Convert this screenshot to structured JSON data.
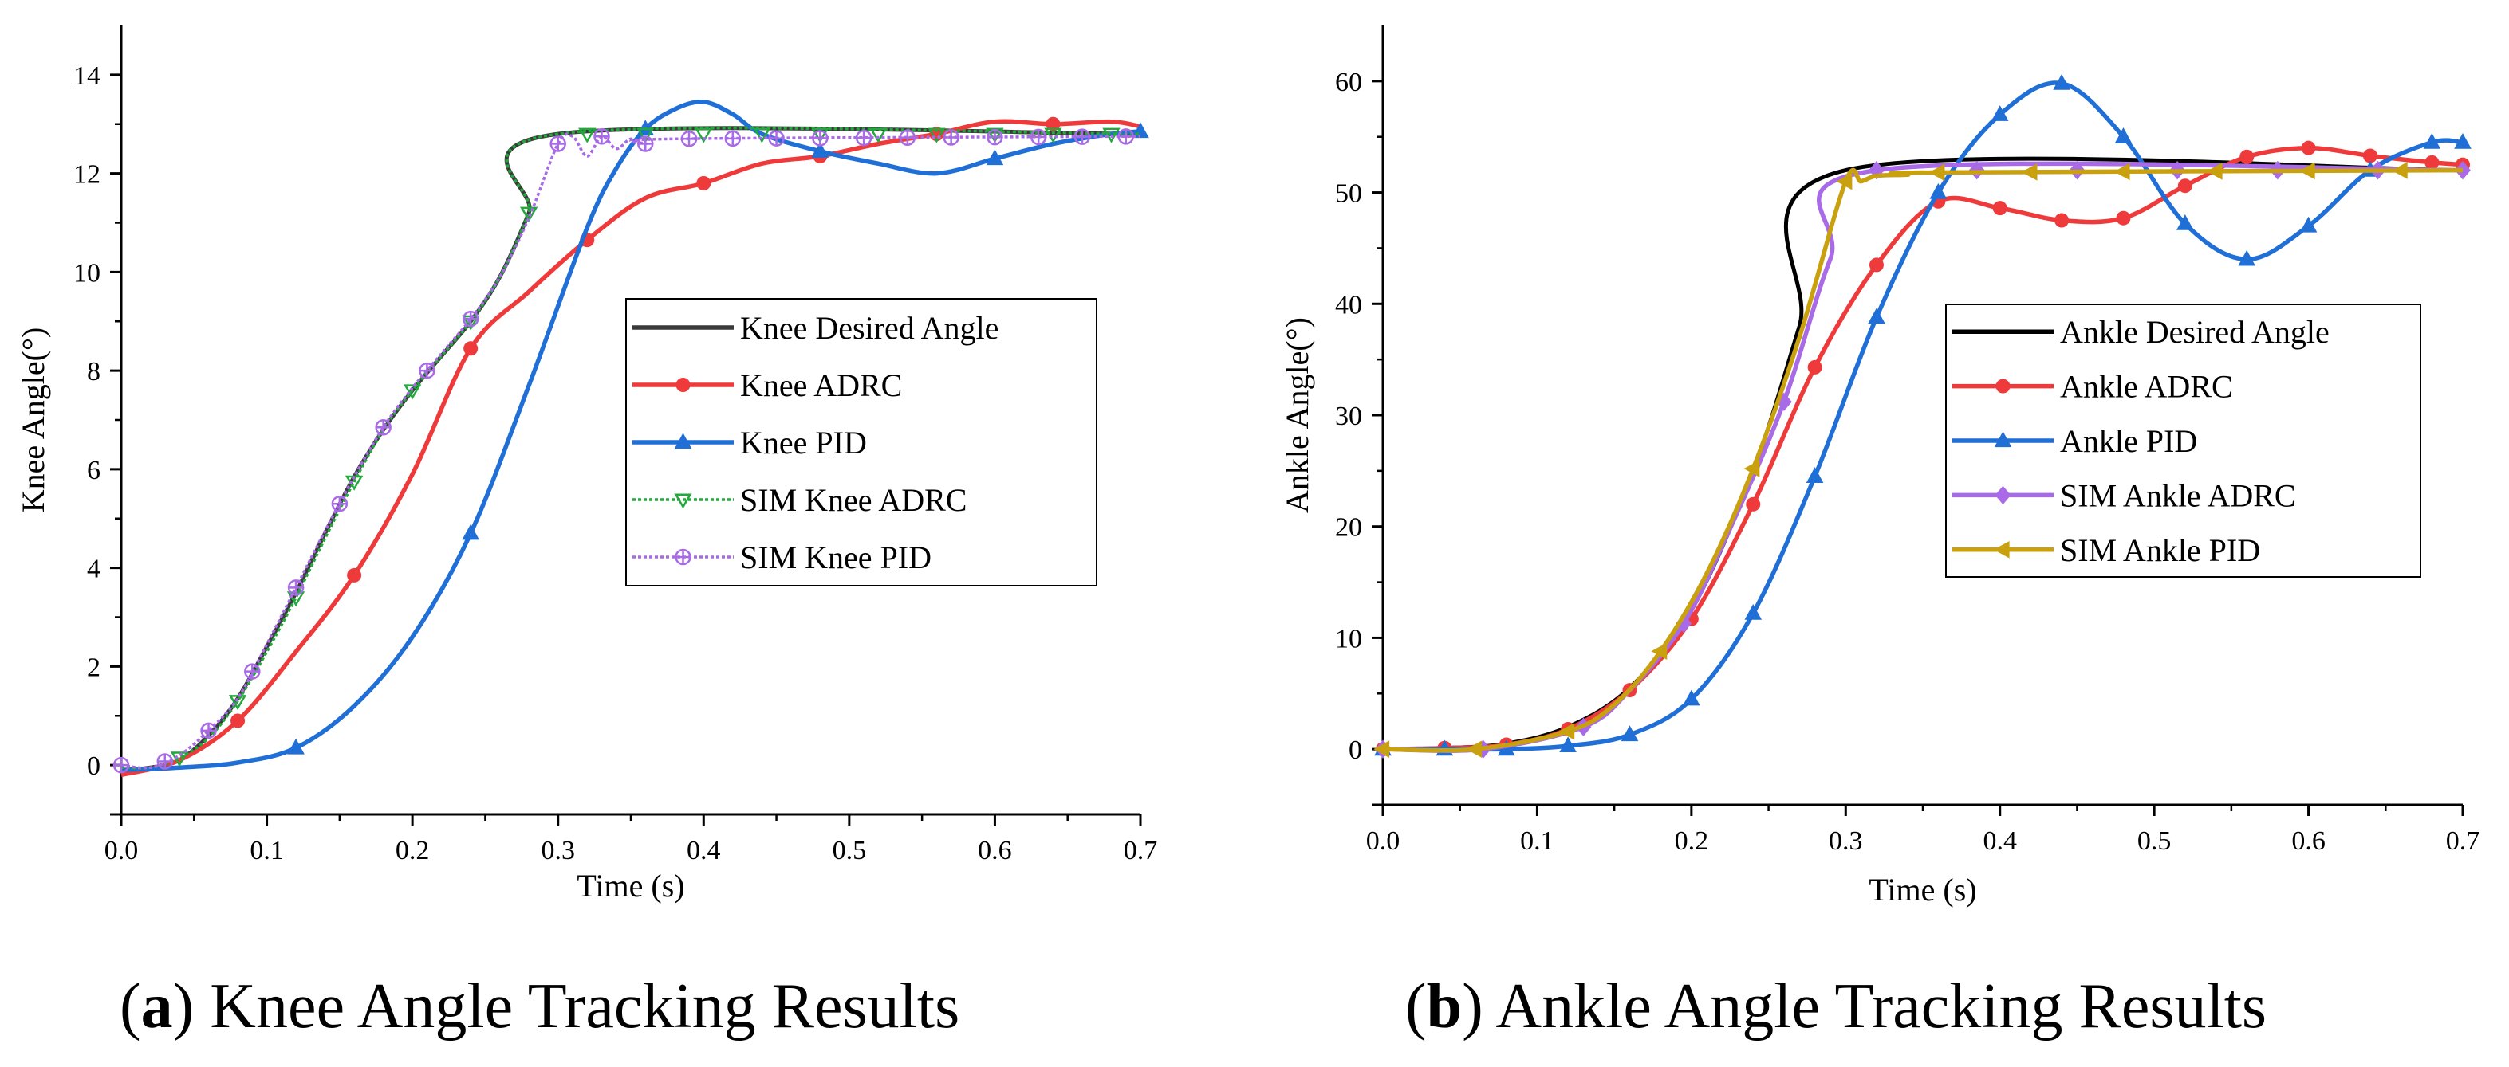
{
  "colors": {
    "desired": "#3a3a3a",
    "desired_ankle": "#000000",
    "adrc": "#ee3a3a",
    "pid": "#1f6fd6",
    "sim_knee_adrc": "#22a93c",
    "sim_knee_pid": "#a86ae6",
    "sim_ankle_adrc": "#a86ae6",
    "sim_ankle_pid": "#c9a00e"
  },
  "captions": {
    "a_letter": "a",
    "a_text": " Knee Angle Tracking Results",
    "b_letter": "b",
    "b_text": " Ankle Angle Tracking Results"
  },
  "chart_data": [
    {
      "type": "line",
      "title": "",
      "xlabel": "Time (s)",
      "ylabel": "Knee Angle(°)",
      "xlim": [
        0,
        0.7
      ],
      "ylim": [
        -1,
        15
      ],
      "x_ticks": [
        0,
        0.1,
        0.2,
        0.3,
        0.4,
        0.5,
        0.6,
        0.7
      ],
      "x_tick_labels": [
        "0.0",
        "0.1",
        "0.2",
        "0.3",
        "0.4",
        "0.5",
        "0.6",
        "0.7"
      ],
      "y_ticks": [
        0,
        2,
        4,
        6,
        8,
        10,
        12,
        14
      ],
      "y_tick_labels": [
        "0",
        "2",
        "4",
        "6",
        "8",
        "10",
        "12",
        "14"
      ],
      "grid": false,
      "legend_position": "center-right",
      "series": [
        {
          "name": "Knee Desired Angle",
          "color_key": "desired",
          "marker": "none",
          "x": [
            0,
            0.02,
            0.04,
            0.06,
            0.08,
            0.1,
            0.12,
            0.14,
            0.16,
            0.18,
            0.2,
            0.22,
            0.24,
            0.26,
            0.28,
            0.3,
            0.7
          ],
          "y": [
            -0.1,
            -0.05,
            0.1,
            0.6,
            1.35,
            2.4,
            3.5,
            4.7,
            5.85,
            6.8,
            7.6,
            8.3,
            9.0,
            9.9,
            11.2,
            12.8,
            12.8
          ]
        },
        {
          "name": "Knee ADRC",
          "color_key": "adrc",
          "marker": "circle",
          "x": [
            0,
            0.04,
            0.08,
            0.12,
            0.16,
            0.2,
            0.24,
            0.28,
            0.32,
            0.36,
            0.4,
            0.44,
            0.48,
            0.52,
            0.56,
            0.6,
            0.64,
            0.68,
            0.7
          ],
          "y": [
            -0.2,
            0.1,
            0.9,
            2.3,
            3.85,
            5.9,
            8.45,
            9.6,
            10.65,
            11.5,
            11.8,
            12.2,
            12.35,
            12.6,
            12.8,
            13.05,
            13.0,
            13.05,
            12.95
          ],
          "marker_x": [
            0.08,
            0.16,
            0.24,
            0.32,
            0.4,
            0.48,
            0.56,
            0.64
          ]
        },
        {
          "name": "Knee PID",
          "color_key": "pid",
          "marker": "triangle",
          "x": [
            0,
            0.04,
            0.08,
            0.12,
            0.16,
            0.2,
            0.24,
            0.28,
            0.32,
            0.34,
            0.36,
            0.38,
            0.4,
            0.42,
            0.44,
            0.48,
            0.52,
            0.56,
            0.6,
            0.64,
            0.68,
            0.7
          ],
          "y": [
            -0.1,
            -0.05,
            0.05,
            0.35,
            1.2,
            2.6,
            4.7,
            7.7,
            10.9,
            12.1,
            12.9,
            13.3,
            13.45,
            13.2,
            12.8,
            12.45,
            12.2,
            12.0,
            12.3,
            12.6,
            12.8,
            12.85
          ],
          "marker_x": [
            0.12,
            0.24,
            0.36,
            0.48,
            0.6,
            0.7
          ]
        },
        {
          "name": "SIM Knee ADRC",
          "color_key": "sim_knee_adrc",
          "marker": "triangle-down",
          "x": [
            0,
            0.02,
            0.04,
            0.06,
            0.08,
            0.1,
            0.12,
            0.14,
            0.16,
            0.18,
            0.2,
            0.22,
            0.24,
            0.26,
            0.28,
            0.3,
            0.7
          ],
          "y": [
            -0.05,
            -0.05,
            0.15,
            0.55,
            1.3,
            2.3,
            3.4,
            4.6,
            5.75,
            6.8,
            7.6,
            8.3,
            9.0,
            9.9,
            11.2,
            12.8,
            12.8
          ],
          "marker_x": [
            0.04,
            0.08,
            0.12,
            0.16,
            0.2,
            0.24,
            0.28,
            0.32,
            0.36,
            0.4,
            0.44,
            0.48,
            0.52,
            0.56,
            0.6,
            0.64,
            0.68
          ]
        },
        {
          "name": "SIM Knee PID",
          "color_key": "sim_knee_pid",
          "marker": "crossed-circle",
          "x": [
            0,
            0.02,
            0.04,
            0.06,
            0.08,
            0.1,
            0.12,
            0.14,
            0.16,
            0.18,
            0.2,
            0.22,
            0.24,
            0.26,
            0.28,
            0.3,
            0.31,
            0.32,
            0.33,
            0.34,
            0.35,
            0.36,
            0.38,
            0.7
          ],
          "y": [
            0.0,
            -0.05,
            0.2,
            0.7,
            1.35,
            2.45,
            3.6,
            4.75,
            5.85,
            6.85,
            7.65,
            8.35,
            9.05,
            9.9,
            11.1,
            12.6,
            12.75,
            12.35,
            12.75,
            12.5,
            12.7,
            12.6,
            12.7,
            12.75
          ],
          "marker_x": [
            0,
            0.03,
            0.06,
            0.09,
            0.12,
            0.15,
            0.18,
            0.21,
            0.24,
            0.3,
            0.33,
            0.36,
            0.39,
            0.42,
            0.45,
            0.48,
            0.51,
            0.54,
            0.57,
            0.6,
            0.63,
            0.66,
            0.69
          ]
        }
      ]
    },
    {
      "type": "line",
      "title": "",
      "xlabel": "Time (s)",
      "ylabel": "Ankle Angle(°)",
      "xlim": [
        0,
        0.7
      ],
      "ylim": [
        -5,
        65
      ],
      "x_ticks": [
        0,
        0.1,
        0.2,
        0.3,
        0.4,
        0.5,
        0.6,
        0.7
      ],
      "x_tick_labels": [
        "0.0",
        "0.1",
        "0.2",
        "0.3",
        "0.4",
        "0.5",
        "0.6",
        "0.7"
      ],
      "y_ticks": [
        0,
        10,
        20,
        30,
        40,
        50,
        60
      ],
      "y_tick_labels": [
        "0",
        "10",
        "20",
        "30",
        "40",
        "50",
        "60"
      ],
      "grid": false,
      "legend_position": "center-right",
      "series": [
        {
          "name": "Ankle Desired Angle",
          "color_key": "desired_ankle",
          "marker": "none",
          "x": [
            0,
            0.04,
            0.08,
            0.12,
            0.16,
            0.2,
            0.24,
            0.27,
            0.3,
            0.7
          ],
          "y": [
            0,
            0.1,
            0.5,
            2.0,
            5.5,
            12.5,
            25.0,
            38.0,
            52.0,
            52.0
          ]
        },
        {
          "name": "Ankle ADRC",
          "color_key": "adrc",
          "marker": "circle",
          "x": [
            0,
            0.04,
            0.08,
            0.12,
            0.16,
            0.2,
            0.24,
            0.28,
            0.32,
            0.36,
            0.4,
            0.44,
            0.48,
            0.52,
            0.56,
            0.6,
            0.64,
            0.68,
            0.7
          ],
          "y": [
            0,
            0.1,
            0.4,
            1.8,
            5.3,
            11.7,
            22.0,
            34.3,
            43.5,
            49.2,
            48.6,
            47.5,
            47.7,
            50.6,
            53.2,
            54.0,
            53.3,
            52.7,
            52.5
          ],
          "marker_x": [
            0,
            0.04,
            0.08,
            0.12,
            0.16,
            0.2,
            0.24,
            0.28,
            0.32,
            0.36,
            0.4,
            0.44,
            0.48,
            0.52,
            0.56,
            0.6,
            0.64,
            0.68,
            0.7
          ]
        },
        {
          "name": "Ankle PID",
          "color_key": "pid",
          "marker": "triangle",
          "x": [
            0,
            0.04,
            0.08,
            0.12,
            0.16,
            0.2,
            0.24,
            0.28,
            0.32,
            0.36,
            0.4,
            0.44,
            0.48,
            0.52,
            0.56,
            0.6,
            0.64,
            0.68,
            0.7
          ],
          "y": [
            0,
            0,
            0,
            0.3,
            1.3,
            4.5,
            12.2,
            24.5,
            38.8,
            50.0,
            57.0,
            59.8,
            55.0,
            47.2,
            44.0,
            47.0,
            52.0,
            54.5,
            54.5
          ],
          "marker_x": [
            0,
            0.04,
            0.08,
            0.12,
            0.16,
            0.2,
            0.24,
            0.28,
            0.32,
            0.36,
            0.4,
            0.44,
            0.48,
            0.52,
            0.56,
            0.6,
            0.64,
            0.68,
            0.7
          ]
        },
        {
          "name": "SIM Ankle ADRC",
          "color_key": "sim_ankle_adrc",
          "marker": "diamond",
          "x": [
            0,
            0.065,
            0.13,
            0.16,
            0.195,
            0.225,
            0.26,
            0.29,
            0.32,
            0.7
          ],
          "y": [
            0,
            0,
            2.0,
            5.3,
            11.3,
            19.8,
            31.2,
            44.0,
            52.0,
            52.0
          ],
          "marker_x": [
            0,
            0.065,
            0.13,
            0.195,
            0.26,
            0.32,
            0.385,
            0.45,
            0.515,
            0.58,
            0.645,
            0.7
          ]
        },
        {
          "name": "SIM Ankle PID",
          "color_key": "sim_ankle_pid",
          "marker": "triangle-left",
          "x": [
            0,
            0.06,
            0.12,
            0.15,
            0.18,
            0.21,
            0.24,
            0.27,
            0.3,
            0.31,
            0.32,
            0.34,
            0.36,
            0.7
          ],
          "y": [
            0,
            0,
            1.6,
            4.0,
            8.8,
            15.8,
            25.2,
            37.0,
            51.0,
            51.0,
            51.5,
            51.6,
            51.8,
            52.0
          ],
          "marker_x": [
            0,
            0.06,
            0.12,
            0.18,
            0.24,
            0.3,
            0.36,
            0.42,
            0.48,
            0.54,
            0.6,
            0.66
          ]
        }
      ]
    }
  ]
}
